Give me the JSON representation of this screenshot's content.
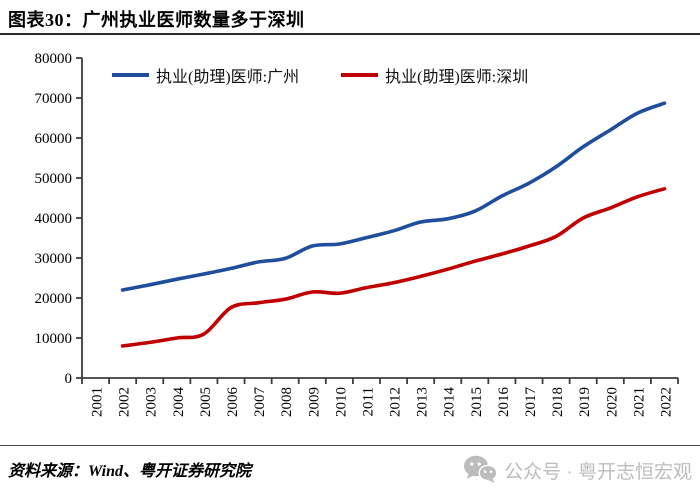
{
  "title": "图表30：广州执业医师数量多于深圳",
  "source_note": "资料来源：Wind、粤开证券研究院",
  "wechat_badge": "公众号 · 粤开志恒宏观",
  "wechat_icon": "wechat-logo",
  "colors": {
    "guangzhou_line": "#1F4E9C",
    "shenzhen_line": "#C00000",
    "axis": "#3d3d3d",
    "footer_gray": "#bcbcbc"
  },
  "chart_data": {
    "type": "line",
    "title": "",
    "xlabel": "",
    "ylabel": "",
    "categories": [
      "2001",
      "2002",
      "2003",
      "2004",
      "2005",
      "2006",
      "2007",
      "2008",
      "2009",
      "2010",
      "2011",
      "2012",
      "2013",
      "2014",
      "2015",
      "2016",
      "2017",
      "2018",
      "2019",
      "2020",
      "2021",
      "2022"
    ],
    "series": [
      {
        "name": "执业(助理)医师:广州",
        "color": "#1F4E9C",
        "values": [
          null,
          22000,
          23300,
          24700,
          26000,
          27400,
          29000,
          29900,
          33000,
          33500,
          35100,
          36800,
          39000,
          39800,
          41700,
          45500,
          48700,
          52800,
          57800,
          62000,
          66200,
          68700
        ]
      },
      {
        "name": "执业(助理)医师:深圳",
        "color": "#C00000",
        "values": [
          null,
          8000,
          8900,
          10000,
          11000,
          17600,
          18800,
          19700,
          21500,
          21200,
          22600,
          23800,
          25400,
          27200,
          29200,
          31000,
          33000,
          35400,
          40000,
          42500,
          45300,
          47300
        ]
      }
    ],
    "ylim": [
      0,
      80000
    ],
    "y_ticks": [
      0,
      10000,
      20000,
      30000,
      40000,
      50000,
      60000,
      70000,
      80000
    ],
    "y_tick_labels": [
      "0",
      "10000",
      "20000",
      "30000",
      "40000",
      "50000",
      "60000",
      "70000",
      "80000"
    ],
    "grid": false,
    "smoothed": true,
    "legend_position": "top"
  }
}
